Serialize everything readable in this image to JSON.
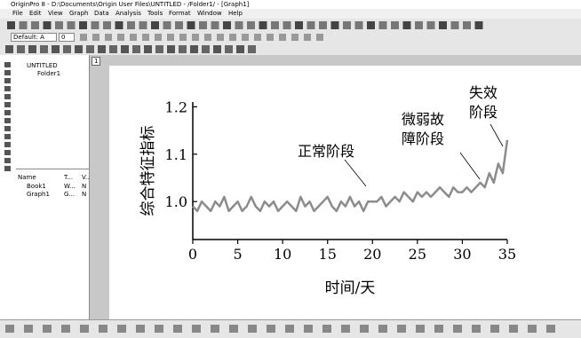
{
  "window": {
    "title": "OriginPro 8 - D:\\Documents\\Origin User Files\\UNTITLED - /Folder1/ - [Graph1]"
  },
  "menu": [
    "File",
    "Edit",
    "View",
    "Graph",
    "Data",
    "Analysis",
    "Tools",
    "Format",
    "Window",
    "Help"
  ],
  "toolbar": {
    "font": "Default: A",
    "size": "0"
  },
  "project_tree": {
    "root": "UNTITLED",
    "folder": "Folder1"
  },
  "file_list": {
    "headers": [
      "Name",
      "T...",
      "V..."
    ],
    "rows": [
      [
        "Book1",
        "W...",
        "N"
      ],
      [
        "Graph1",
        "G...",
        "N"
      ]
    ]
  },
  "graph_window": {
    "layer_tab": "1"
  },
  "chart_data": {
    "type": "line",
    "ylabel": "综合特征指标",
    "xlabel": "时间/天",
    "annotations": [
      [
        "正常阶段"
      ],
      [
        "微弱故",
        "障阶段"
      ],
      [
        "失效",
        "阶段"
      ]
    ],
    "x": [
      0,
      0.5,
      1,
      1.5,
      2,
      2.5,
      3,
      3.5,
      4,
      4.5,
      5,
      5.5,
      6,
      6.5,
      7,
      7.5,
      8,
      8.5,
      9,
      9.5,
      10,
      10.5,
      11,
      11.5,
      12,
      12.5,
      13,
      13.5,
      14,
      14.5,
      15,
      15.5,
      16,
      16.5,
      17,
      17.5,
      18,
      18.5,
      19,
      19.5,
      20,
      20.5,
      21,
      21.5,
      22,
      22.5,
      23,
      23.5,
      24,
      24.5,
      25,
      25.5,
      26,
      26.5,
      27,
      27.5,
      28,
      28.5,
      29,
      29.5,
      30,
      30.5,
      31,
      31.5,
      32,
      32.5,
      33,
      33.5,
      34,
      34.5,
      35
    ],
    "values": [
      0.99,
      0.98,
      1.0,
      0.99,
      0.98,
      1.0,
      0.99,
      1.01,
      0.98,
      0.99,
      1.0,
      0.98,
      0.99,
      1.01,
      0.99,
      0.98,
      1.0,
      0.99,
      1.0,
      0.98,
      0.99,
      1.0,
      0.99,
      0.98,
      1.01,
      0.99,
      1.0,
      0.98,
      0.99,
      1.0,
      1.01,
      0.99,
      0.98,
      1.0,
      0.99,
      1.01,
      0.99,
      1.0,
      0.98,
      1.0,
      1.0,
      1.0,
      1.01,
      0.99,
      1.0,
      1.01,
      1.0,
      1.02,
      1.01,
      1.0,
      1.02,
      1.01,
      1.02,
      1.01,
      1.02,
      1.03,
      1.02,
      1.01,
      1.03,
      1.02,
      1.02,
      1.03,
      1.02,
      1.03,
      1.04,
      1.03,
      1.06,
      1.04,
      1.08,
      1.06,
      1.13
    ],
    "color": "#8c8c8c",
    "xlim": [
      0,
      35
    ],
    "ylim": [
      0.92,
      1.21
    ],
    "xticks": [
      0,
      5,
      10,
      15,
      20,
      25,
      30,
      35
    ],
    "yticks": [
      {
        "value": 1,
        "label": "1.0"
      },
      1.1,
      1.2
    ]
  }
}
